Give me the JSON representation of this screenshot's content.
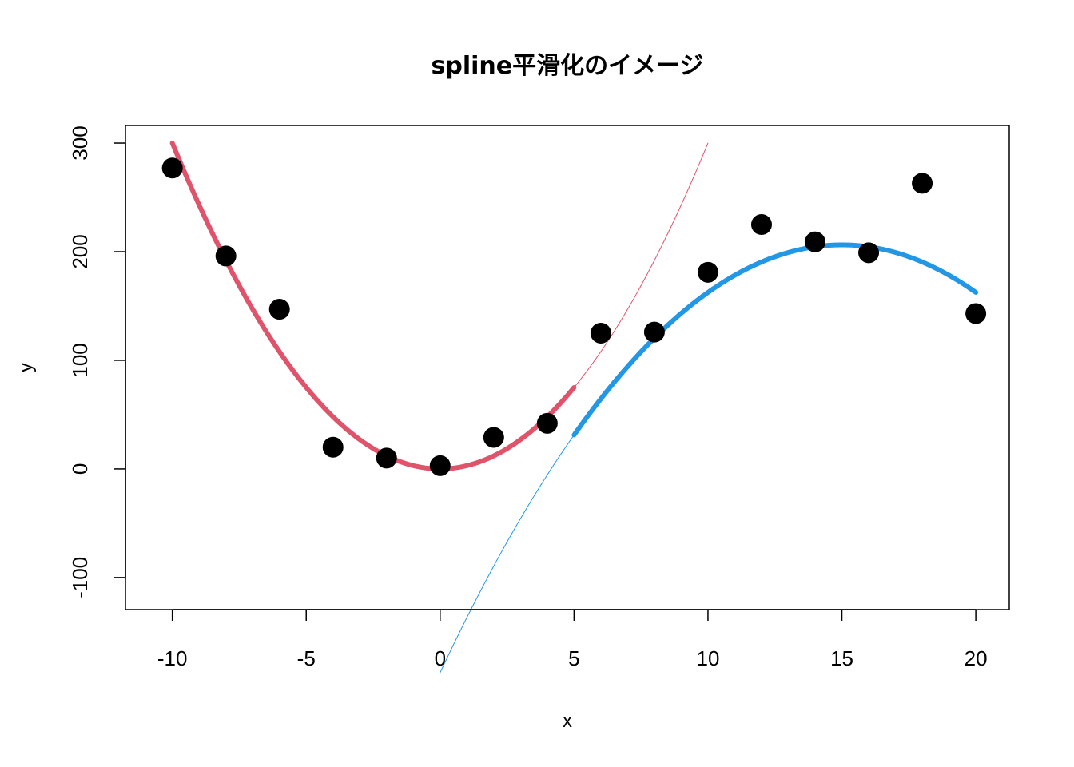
{
  "chart_data": {
    "type": "scatter",
    "title": "spline平滑化のイメージ",
    "xlabel": "x",
    "ylabel": "y",
    "xlim": [
      -11.75,
      21.25
    ],
    "ylim": [
      -129.5,
      316.2
    ],
    "xticks": [
      -10,
      -5,
      0,
      5,
      10,
      15,
      20
    ],
    "yticks": [
      -100,
      0,
      100,
      200,
      300
    ],
    "grid": false,
    "legend": "none",
    "points": {
      "color": "#000000",
      "x": [
        -10,
        -8,
        -6,
        -4,
        -2,
        0,
        2,
        4,
        6,
        8,
        10,
        12,
        14,
        16,
        18,
        20
      ],
      "y": [
        277,
        196,
        147,
        20,
        10,
        3,
        29,
        42,
        125,
        126,
        181,
        225,
        209,
        199,
        263,
        143
      ]
    },
    "curves": [
      {
        "color": "#DF536B",
        "width": 6,
        "range": [
          -10,
          5
        ],
        "coef": [
          0,
          0,
          3
        ]
      },
      {
        "color": "#2297E6",
        "width": 6,
        "range": [
          5,
          20
        ],
        "coef": [
          -187.5,
          52.5,
          -1.75
        ]
      },
      {
        "color": "#DF536B",
        "width": 1,
        "range": [
          5,
          10
        ],
        "coef": [
          0,
          0,
          3
        ]
      },
      {
        "color": "#2297E6",
        "width": 1,
        "range": [
          0,
          5
        ],
        "coef": [
          -187.5,
          52.5,
          -1.75
        ]
      }
    ]
  }
}
